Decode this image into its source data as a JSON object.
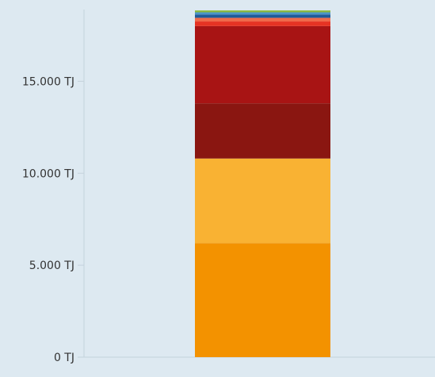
{
  "chart_data": {
    "type": "bar",
    "stacked": true,
    "categories": [
      ""
    ],
    "series": [
      {
        "values": [
          6200
        ],
        "color": "#f39200"
      },
      {
        "values": [
          4600
        ],
        "color": "#f9b233"
      },
      {
        "values": [
          3000
        ],
        "color": "#8a1611"
      },
      {
        "values": [
          4200
        ],
        "color": "#a81414"
      },
      {
        "values": [
          250
        ],
        "color": "#e63323"
      },
      {
        "values": [
          200
        ],
        "color": "#ef6a4a"
      },
      {
        "values": [
          180
        ],
        "color": "#1f5a99"
      },
      {
        "values": [
          120
        ],
        "color": "#4a95c8"
      },
      {
        "values": [
          100
        ],
        "color": "#8ab83a"
      }
    ],
    "yticks": [
      0,
      5000,
      10000,
      15000
    ],
    "ytick_labels": [
      "0 TJ",
      "5.000 TJ",
      "10.000 TJ",
      "15.000 TJ"
    ],
    "ylim": [
      0,
      18900
    ],
    "grid": false,
    "legend": "none",
    "colors": {
      "background": "#dde9f1",
      "axis": "#c4d2dc",
      "text": "#333333"
    }
  }
}
